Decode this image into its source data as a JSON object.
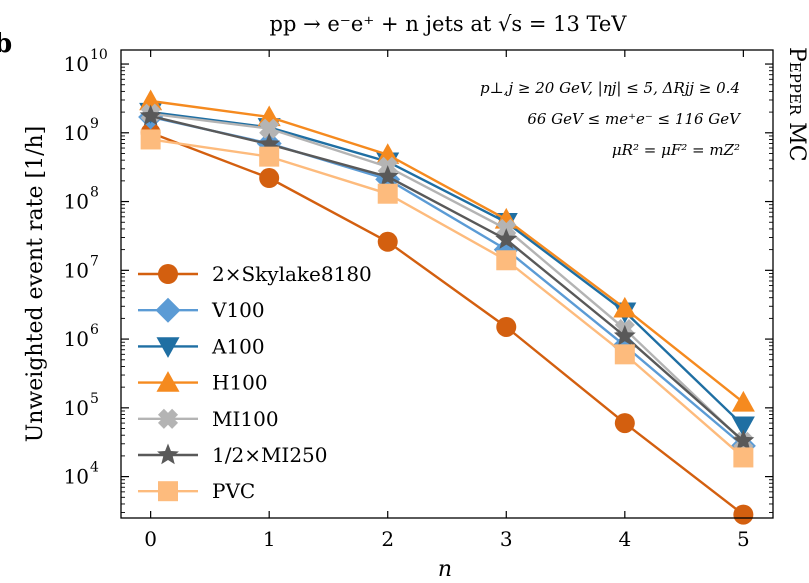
{
  "chart_data": {
    "type": "line",
    "title": "pp → e⁻e⁺ + n jets at √s = 13 TeV",
    "xlabel": "n",
    "ylabel": "Unweighted event rate [1/h]",
    "side_label": "Pepper MC",
    "panel_letter": "b",
    "y_scale": "log",
    "xlim": [
      -0.25,
      5.25
    ],
    "ylim": [
      2500,
      16000000000
    ],
    "x": [
      0,
      1,
      2,
      3,
      4,
      5
    ],
    "x_ticks": [
      "0",
      "1",
      "2",
      "3",
      "4",
      "5"
    ],
    "y_ticks": [
      {
        "value": 10000,
        "base": "10",
        "exp": "4"
      },
      {
        "value": 100000,
        "base": "10",
        "exp": "5"
      },
      {
        "value": 1000000,
        "base": "10",
        "exp": "6"
      },
      {
        "value": 10000000,
        "base": "10",
        "exp": "7"
      },
      {
        "value": 100000000,
        "base": "10",
        "exp": "8"
      },
      {
        "value": 1000000000,
        "base": "10",
        "exp": "9"
      },
      {
        "value": 10000000000,
        "base": "10",
        "exp": "10"
      }
    ],
    "annotations": [
      "p⊥,j ≥ 20 GeV, |ηj| ≤ 5, ΔRjj ≥ 0.4",
      "66 GeV ≤ me⁺e⁻ ≤ 116 GeV",
      "μR² = μF² = mZ²"
    ],
    "legend_placement": "center-left",
    "grid": false,
    "series": [
      {
        "name": "2×Skylake8180",
        "marker": "circle",
        "color": "#d35f0f",
        "values": [
          1000000000,
          220000000,
          26000000,
          1500000,
          60000,
          2800
        ]
      },
      {
        "name": "V100",
        "marker": "diamond",
        "color": "#5b9bd5",
        "values": [
          1700000000,
          700000000,
          210000000,
          20000000,
          800000,
          28000
        ]
      },
      {
        "name": "A100",
        "marker": "triangle-down",
        "color": "#1f6fa3",
        "values": [
          2000000000,
          1200000000,
          380000000,
          50000000,
          2500000,
          55000
        ]
      },
      {
        "name": "H100",
        "marker": "triangle-up",
        "color": "#f58a1f",
        "values": [
          2900000000,
          1700000000,
          480000000,
          55000000,
          2800000,
          120000
        ]
      },
      {
        "name": "MI100",
        "marker": "plus",
        "color": "#b4b4b4",
        "values": [
          1900000000,
          1150000000,
          320000000,
          40000000,
          1400000,
          32000
        ]
      },
      {
        "name": "1/2×MI250",
        "marker": "star",
        "color": "#595959",
        "values": [
          1750000000,
          680000000,
          230000000,
          28000000,
          1100000,
          33000
        ]
      },
      {
        "name": "PVC",
        "marker": "square",
        "color": "#fdbb7d",
        "values": [
          800000000,
          450000000,
          130000000,
          14000000,
          600000,
          19000
        ]
      }
    ]
  }
}
